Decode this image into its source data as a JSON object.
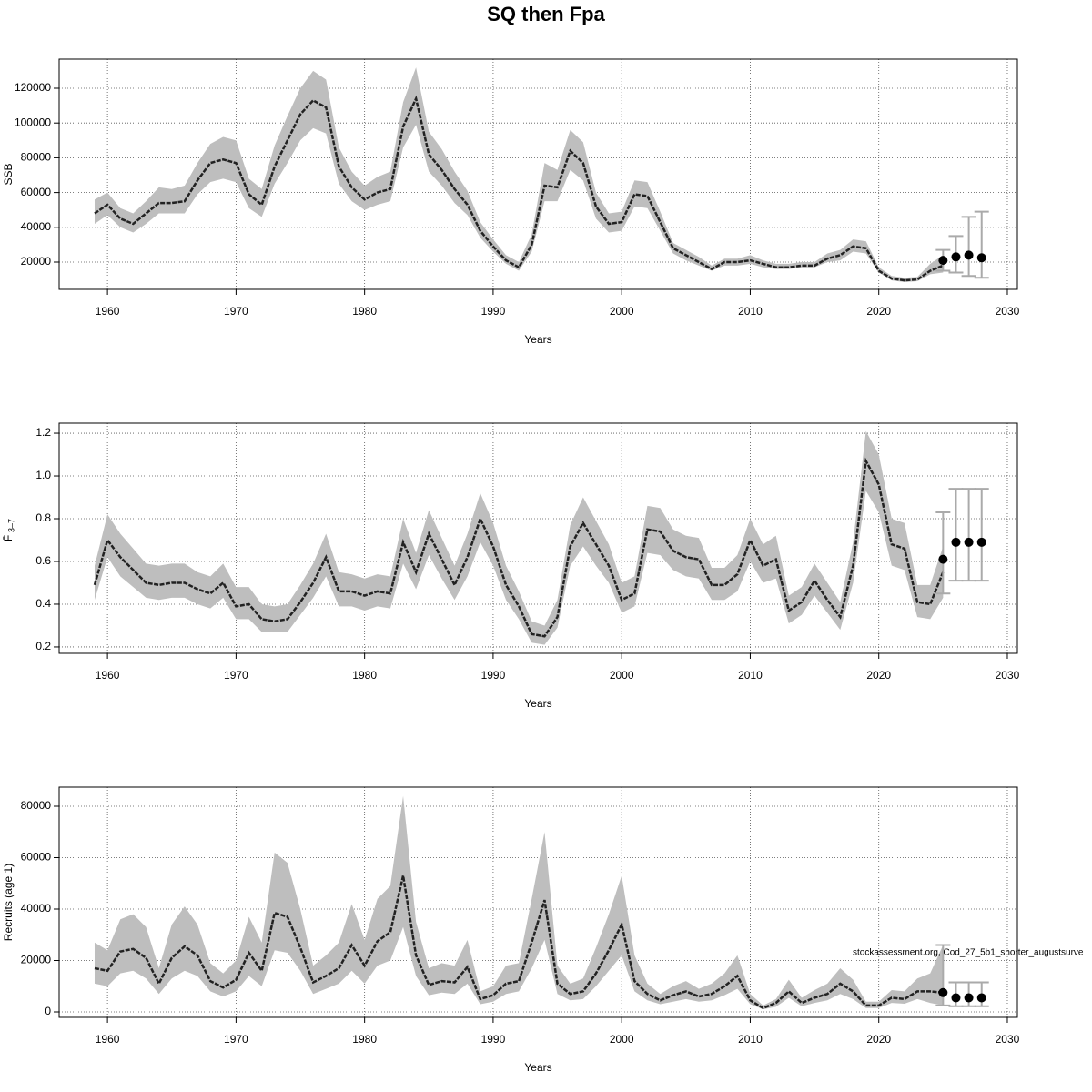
{
  "chart_data": [
    {
      "type": "line",
      "title": "SQ then Fpa",
      "xlabel": "Years",
      "ylabel": "SSB",
      "xlim": [
        1956.24,
        2030.78
      ],
      "xticks": [
        1960,
        1970,
        1980,
        1990,
        2000,
        2010,
        2020,
        2030
      ],
      "ylim": [
        4300,
        136750
      ],
      "yticks": [
        20000,
        40000,
        60000,
        80000,
        100000,
        120000
      ],
      "grid": true,
      "line_color": "#222222",
      "band_color": "#bebebe",
      "point_color": "#000000",
      "errorbar_color": "#aaaaaa",
      "x": [
        1959,
        1960,
        1961,
        1962,
        1963,
        1964,
        1965,
        1966,
        1967,
        1968,
        1969,
        1970,
        1971,
        1972,
        1973,
        1974,
        1975,
        1976,
        1977,
        1978,
        1979,
        1980,
        1981,
        1982,
        1983,
        1984,
        1985,
        1986,
        1987,
        1988,
        1989,
        1990,
        1991,
        1992,
        1993,
        1994,
        1995,
        1996,
        1997,
        1998,
        1999,
        2000,
        2001,
        2002,
        2003,
        2004,
        2005,
        2006,
        2007,
        2008,
        2009,
        2010,
        2011,
        2012,
        2013,
        2014,
        2015,
        2016,
        2017,
        2018,
        2019,
        2020,
        2021,
        2022,
        2023,
        2024,
        2025
      ],
      "values": [
        48000,
        53000,
        45000,
        42000,
        48000,
        54000,
        54000,
        55000,
        67000,
        77000,
        79000,
        77000,
        59000,
        53000,
        75000,
        90000,
        105000,
        113000,
        109000,
        75000,
        63000,
        56000,
        60000,
        62000,
        98000,
        114000,
        82000,
        73000,
        62000,
        53000,
        38000,
        29000,
        21000,
        17000,
        30000,
        64000,
        63000,
        84000,
        77000,
        52000,
        42000,
        43000,
        59000,
        58000,
        43000,
        28000,
        24000,
        20000,
        16000,
        20000,
        20000,
        21000,
        19000,
        17000,
        17000,
        18000,
        18000,
        22000,
        24000,
        29000,
        28000,
        15000,
        10500,
        9500,
        10000,
        15000,
        18000
      ],
      "lower": [
        42000,
        47000,
        40000,
        37000,
        42000,
        48000,
        48000,
        48000,
        59000,
        66000,
        68000,
        66000,
        51000,
        46000,
        65000,
        77000,
        90000,
        97000,
        94000,
        65000,
        55000,
        50000,
        53000,
        55000,
        86000,
        99000,
        72000,
        64000,
        54000,
        47000,
        34000,
        26000,
        19000,
        15000,
        26000,
        55000,
        55000,
        73000,
        67000,
        45000,
        37000,
        38000,
        52000,
        51000,
        38000,
        25000,
        21000,
        18000,
        15000,
        18000,
        18000,
        19000,
        17000,
        16000,
        16000,
        17000,
        17000,
        20000,
        21000,
        26000,
        25000,
        14000,
        9500,
        8500,
        9000,
        13000,
        14000
      ],
      "upper": [
        56000,
        60000,
        51000,
        48000,
        55000,
        63000,
        62000,
        64000,
        77000,
        88000,
        92000,
        90000,
        68000,
        62000,
        87000,
        104000,
        120000,
        130000,
        125000,
        86000,
        72000,
        64000,
        69000,
        72000,
        112000,
        132000,
        95000,
        85000,
        72000,
        61000,
        43000,
        33000,
        24000,
        20000,
        36000,
        77000,
        73000,
        96000,
        89000,
        60000,
        48000,
        49000,
        67000,
        66000,
        49000,
        31000,
        27000,
        23000,
        18000,
        22000,
        22000,
        24000,
        21000,
        19000,
        19000,
        20000,
        20000,
        25000,
        27000,
        33000,
        32000,
        17000,
        12000,
        11000,
        11500,
        19000,
        24000
      ],
      "forecast": {
        "x": [
          2025,
          2026,
          2027,
          2028
        ],
        "values": [
          21000,
          23000,
          24000,
          22500
        ],
        "lower": [
          15000,
          14000,
          12000,
          11000
        ],
        "upper": [
          27000,
          35000,
          46000,
          49000
        ]
      }
    },
    {
      "type": "line",
      "xlabel": "Years",
      "ylabel": "F̄",
      "ylabel_sub": "3–7",
      "xlim": [
        1956.24,
        2030.78
      ],
      "xticks": [
        1960,
        1970,
        1980,
        1990,
        2000,
        2010,
        2020,
        2030
      ],
      "ylim": [
        0.17,
        1.247
      ],
      "yticks": [
        0.2,
        0.4,
        0.6,
        0.8,
        {
          "value": 1,
          "label": "1.0"
        },
        1.2
      ],
      "grid": true,
      "line_color": "#222222",
      "band_color": "#bebebe",
      "point_color": "#000000",
      "errorbar_color": "#aaaaaa",
      "x": [
        1959,
        1960,
        1961,
        1962,
        1963,
        1964,
        1965,
        1966,
        1967,
        1968,
        1969,
        1970,
        1971,
        1972,
        1973,
        1974,
        1975,
        1976,
        1977,
        1978,
        1979,
        1980,
        1981,
        1982,
        1983,
        1984,
        1985,
        1986,
        1987,
        1988,
        1989,
        1990,
        1991,
        1992,
        1993,
        1994,
        1995,
        1996,
        1997,
        1998,
        1999,
        2000,
        2001,
        2002,
        2003,
        2004,
        2005,
        2006,
        2007,
        2008,
        2009,
        2010,
        2011,
        2012,
        2013,
        2014,
        2015,
        2016,
        2017,
        2018,
        2019,
        2020,
        2021,
        2022,
        2023,
        2024,
        2025
      ],
      "values": [
        0.49,
        0.7,
        0.62,
        0.56,
        0.5,
        0.49,
        0.5,
        0.5,
        0.47,
        0.45,
        0.5,
        0.39,
        0.4,
        0.33,
        0.32,
        0.33,
        0.41,
        0.5,
        0.62,
        0.46,
        0.46,
        0.44,
        0.46,
        0.45,
        0.69,
        0.55,
        0.73,
        0.61,
        0.49,
        0.62,
        0.8,
        0.67,
        0.49,
        0.39,
        0.26,
        0.25,
        0.34,
        0.67,
        0.78,
        0.68,
        0.58,
        0.42,
        0.45,
        0.75,
        0.74,
        0.65,
        0.62,
        0.61,
        0.49,
        0.49,
        0.54,
        0.7,
        0.58,
        0.61,
        0.37,
        0.41,
        0.51,
        0.42,
        0.34,
        0.58,
        1.07,
        0.96,
        0.68,
        0.66,
        0.41,
        0.4,
        0.55
      ],
      "lower": [
        0.42,
        0.62,
        0.53,
        0.48,
        0.43,
        0.42,
        0.43,
        0.43,
        0.4,
        0.38,
        0.43,
        0.33,
        0.33,
        0.27,
        0.27,
        0.27,
        0.35,
        0.43,
        0.53,
        0.39,
        0.39,
        0.37,
        0.39,
        0.38,
        0.59,
        0.47,
        0.63,
        0.52,
        0.42,
        0.53,
        0.69,
        0.58,
        0.42,
        0.33,
        0.22,
        0.21,
        0.29,
        0.58,
        0.67,
        0.58,
        0.5,
        0.36,
        0.39,
        0.64,
        0.63,
        0.56,
        0.53,
        0.52,
        0.42,
        0.42,
        0.46,
        0.6,
        0.5,
        0.52,
        0.31,
        0.35,
        0.44,
        0.36,
        0.28,
        0.5,
        0.93,
        0.83,
        0.58,
        0.56,
        0.34,
        0.33,
        0.43
      ],
      "upper": [
        0.58,
        0.82,
        0.73,
        0.66,
        0.59,
        0.58,
        0.59,
        0.59,
        0.55,
        0.53,
        0.59,
        0.48,
        0.48,
        0.4,
        0.39,
        0.4,
        0.49,
        0.59,
        0.73,
        0.55,
        0.54,
        0.52,
        0.54,
        0.53,
        0.8,
        0.64,
        0.84,
        0.71,
        0.58,
        0.73,
        0.92,
        0.78,
        0.58,
        0.46,
        0.32,
        0.3,
        0.42,
        0.77,
        0.9,
        0.79,
        0.68,
        0.5,
        0.53,
        0.86,
        0.85,
        0.75,
        0.72,
        0.71,
        0.57,
        0.57,
        0.63,
        0.8,
        0.68,
        0.72,
        0.44,
        0.48,
        0.59,
        0.5,
        0.41,
        0.69,
        1.21,
        1.1,
        0.8,
        0.78,
        0.49,
        0.49,
        0.67
      ],
      "forecast": {
        "x": [
          2025,
          2026,
          2027,
          2028
        ],
        "values": [
          0.61,
          0.69,
          0.69,
          0.69
        ],
        "lower": [
          0.45,
          0.51,
          0.51,
          0.51
        ],
        "upper": [
          0.83,
          0.94,
          0.94,
          0.94
        ]
      }
    },
    {
      "type": "line",
      "xlabel": "Years",
      "ylabel": "Recruits (age 1)",
      "annotation": "stockassessment.org, Cod_27_5b1_shorter_augustsurve",
      "xlim": [
        1956.24,
        2030.78
      ],
      "xticks": [
        1960,
        1970,
        1980,
        1990,
        2000,
        2010,
        2020,
        2030
      ],
      "ylim": [
        -2124,
        87434
      ],
      "yticks": [
        0,
        20000,
        40000,
        60000,
        80000
      ],
      "grid": true,
      "line_color": "#222222",
      "band_color": "#bebebe",
      "point_color": "#000000",
      "errorbar_color": "#aaaaaa",
      "x": [
        1959,
        1960,
        1961,
        1962,
        1963,
        1964,
        1965,
        1966,
        1967,
        1968,
        1969,
        1970,
        1971,
        1972,
        1973,
        1974,
        1975,
        1976,
        1977,
        1978,
        1979,
        1980,
        1981,
        1982,
        1983,
        1984,
        1985,
        1986,
        1987,
        1988,
        1989,
        1990,
        1991,
        1992,
        1993,
        1994,
        1995,
        1996,
        1997,
        1998,
        1999,
        2000,
        2001,
        2002,
        2003,
        2004,
        2005,
        2006,
        2007,
        2008,
        2009,
        2010,
        2011,
        2012,
        2013,
        2014,
        2015,
        2016,
        2017,
        2018,
        2019,
        2020,
        2021,
        2022,
        2023,
        2024,
        2025
      ],
      "values": [
        17000,
        16000,
        23500,
        24500,
        21000,
        11000,
        21000,
        25500,
        22000,
        12000,
        9500,
        12500,
        23000,
        16000,
        38500,
        37000,
        25000,
        11500,
        14000,
        17000,
        26000,
        18000,
        27500,
        31000,
        53000,
        22000,
        10500,
        12000,
        11500,
        17500,
        5000,
        6500,
        11000,
        12000,
        27000,
        43500,
        11000,
        7000,
        8000,
        15000,
        24000,
        34000,
        12000,
        7000,
        4500,
        6500,
        8000,
        6000,
        7000,
        10000,
        14000,
        4500,
        1500,
        3500,
        8000,
        3500,
        5500,
        7000,
        11000,
        8000,
        2500,
        2500,
        5500,
        5000,
        8000,
        8000,
        7500
      ],
      "lower": [
        11000,
        10000,
        15000,
        16000,
        13000,
        7000,
        13000,
        16000,
        14000,
        8000,
        6000,
        8000,
        14000,
        10000,
        24000,
        23000,
        16000,
        7000,
        9000,
        11000,
        16000,
        11000,
        18000,
        20000,
        33000,
        14000,
        6500,
        7500,
        7000,
        11000,
        3000,
        4000,
        7000,
        8000,
        17000,
        28000,
        7000,
        4500,
        5000,
        10000,
        16000,
        22000,
        8000,
        4500,
        3000,
        4000,
        5000,
        4000,
        4500,
        6500,
        9000,
        3000,
        1000,
        2000,
        5500,
        2200,
        3500,
        4500,
        7000,
        5000,
        1500,
        1500,
        3500,
        3200,
        5000,
        3500,
        2500
      ],
      "upper": [
        27000,
        24000,
        36000,
        38000,
        33000,
        17000,
        34000,
        41000,
        34000,
        19000,
        15000,
        20000,
        37000,
        27000,
        62000,
        58000,
        40000,
        18000,
        22000,
        27000,
        42000,
        28000,
        44000,
        49000,
        84000,
        35000,
        17000,
        19000,
        18000,
        28000,
        8000,
        10000,
        18000,
        19000,
        44000,
        70000,
        18000,
        11000,
        13000,
        25000,
        38000,
        53000,
        22000,
        11000,
        7000,
        10000,
        12000,
        9000,
        11000,
        15000,
        22000,
        7000,
        2500,
        5000,
        12500,
        5500,
        8500,
        11000,
        17000,
        12500,
        4000,
        4000,
        8500,
        8000,
        13000,
        15000,
        26000
      ],
      "forecast": {
        "x": [
          2025,
          2026,
          2027,
          2028
        ],
        "values": [
          7500,
          5500,
          5500,
          5500
        ],
        "lower": [
          2500,
          2200,
          2200,
          2200
        ],
        "upper": [
          26000,
          11500,
          11500,
          11500
        ]
      }
    }
  ]
}
